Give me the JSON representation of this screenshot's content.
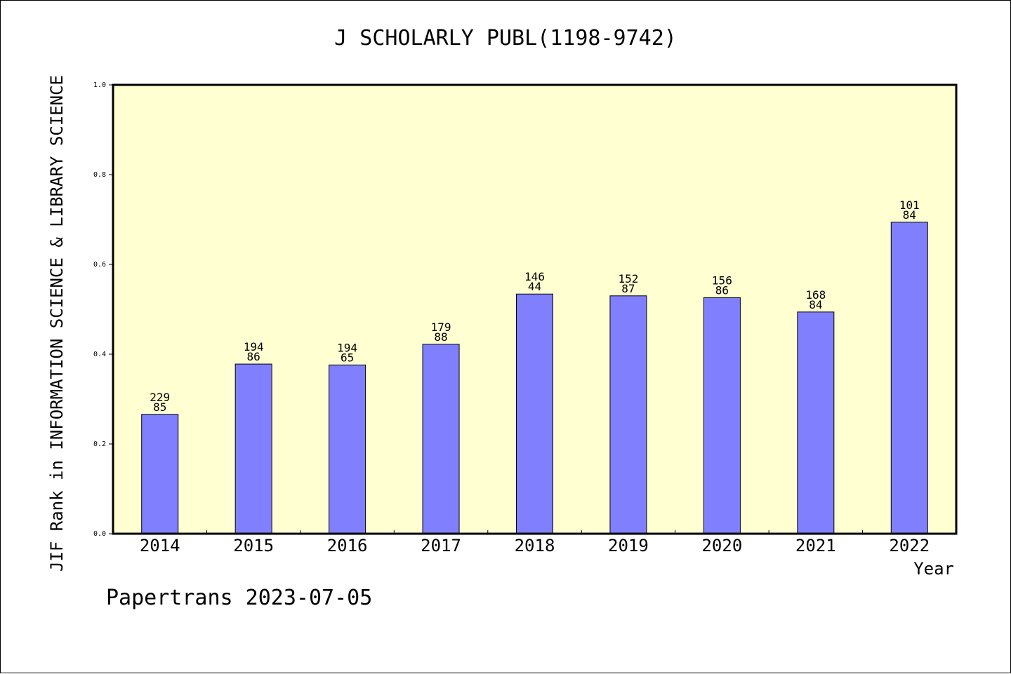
{
  "chart_data": {
    "type": "bar",
    "title": "J SCHOLARLY PUBL(1198-9742)",
    "xlabel": "Year",
    "ylabel": "JIF Rank in INFORMATION SCIENCE & LIBRARY SCIENCE",
    "ylim": [
      0.0,
      1.0
    ],
    "yticks": [
      "0.0",
      "0.2",
      "0.4",
      "0.6",
      "0.8",
      "1.0"
    ],
    "categories": [
      "2014",
      "2015",
      "2016",
      "2017",
      "2018",
      "2019",
      "2020",
      "2021",
      "2022"
    ],
    "values": [
      0.266,
      0.378,
      0.376,
      0.422,
      0.534,
      0.53,
      0.526,
      0.494,
      0.694
    ],
    "label_top": [
      "229",
      "194",
      "194",
      "179",
      "146",
      "152",
      "156",
      "168",
      "101"
    ],
    "label_bottom": [
      "85",
      "86",
      "65",
      "88",
      "44",
      "87",
      "86",
      "84",
      "84"
    ],
    "bar_color": "#8080ff",
    "plot_background": "#ffffd2",
    "grid": false
  },
  "footer": "Papertrans 2023-07-05"
}
